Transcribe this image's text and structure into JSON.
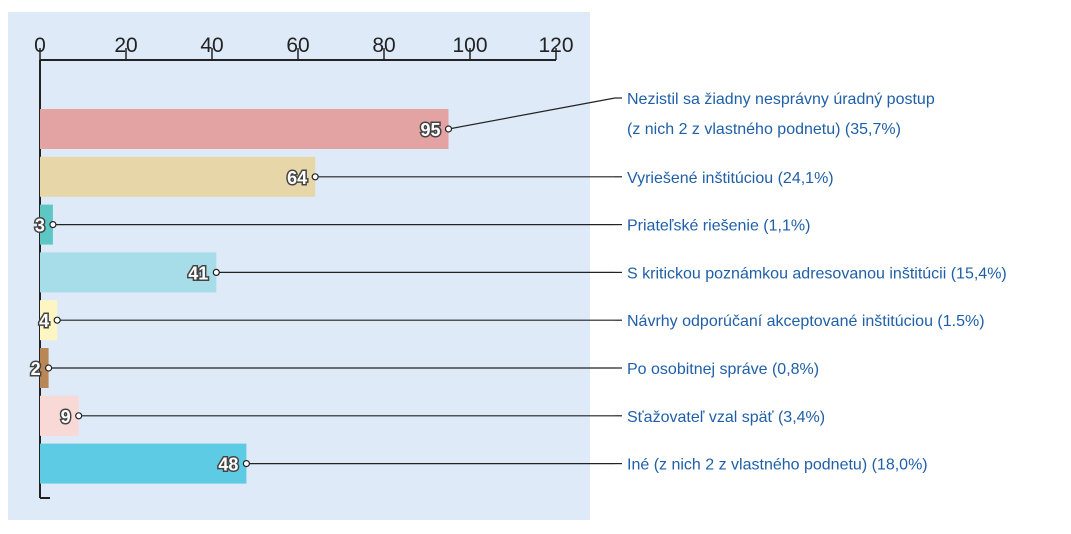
{
  "chart_data": {
    "type": "bar",
    "orientation": "horizontal",
    "categories": [
      "Nezistil sa žiadny nesprávny úradný postup\n(z nich 2 z vlastného podnetu) (35,7%)",
      "Vyriešené inštitúciou (24,1%)",
      "Priateľské riešenie (1,1%)",
      "S kritickou poznámkou adresovanou inštitúcii (15,4%)",
      "Návrhy odporúčaní akceptované inštitúciou (1.5%)",
      "Po osobitnej správe (0,8%)",
      "Sťažovateľ vzal späť (3,4%)",
      "Iné (z nich 2 z vlastného podnetu) (18,0%)"
    ],
    "values": [
      95,
      64,
      3,
      41,
      4,
      2,
      9,
      48
    ],
    "colors": [
      "#e4a3a3",
      "#e6d6a8",
      "#5ec7c4",
      "#a6dde8",
      "#fdf6c3",
      "#b98656",
      "#f8d9d6",
      "#5ccbe3"
    ],
    "xlim": [
      0,
      120
    ],
    "xticks": [
      0,
      20,
      40,
      60,
      80,
      100,
      120
    ]
  }
}
